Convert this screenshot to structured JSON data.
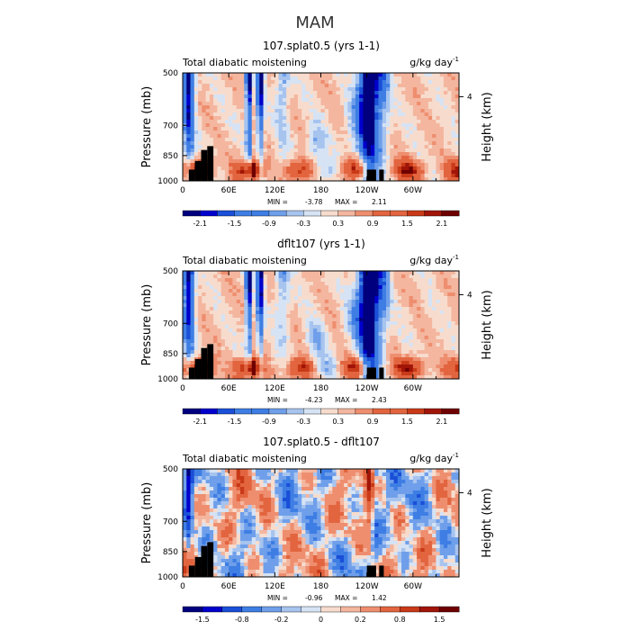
{
  "figure_title": "MAM",
  "colors": [
    "#00007f",
    "#0000cc",
    "#1a4fd8",
    "#3e7ee4",
    "#6f9fea",
    "#a7c4ef",
    "#d6e3f4",
    "#f7dccd",
    "#f4b69f",
    "#ee8e6f",
    "#e2653f",
    "#c93a18",
    "#a11508",
    "#6e0000"
  ],
  "land_color": "#000000",
  "chart_data": [
    {
      "type": "heatmap",
      "title": "107.splat0.5 (yrs 1-1)",
      "subtitle_left": "Total diabatic moistening",
      "units": "g/kg day",
      "units_exponent": "-1",
      "ylabel": "Pressure (mb)",
      "ylabel_right": "Height (km)",
      "y_ticks": [
        "500",
        "700",
        "850",
        "1000"
      ],
      "y_right_ticks": [
        "4"
      ],
      "x_ticks": [
        "0",
        "60E",
        "120E",
        "180",
        "120W",
        "60W"
      ],
      "x_range": [
        0,
        360
      ],
      "y_range": [
        1000,
        500
      ],
      "min_label": "MIN =",
      "min_value": "-3.78",
      "max_label": "MAX =",
      "max_value": "2.11",
      "min": -3.78,
      "max": 2.11,
      "colorbar_ticks": [
        "-2.1",
        "-1.5",
        "-0.9",
        "-0.3",
        "0.3",
        "0.9",
        "1.5",
        "2.1"
      ],
      "colorbar_levels": [
        -2.4,
        -2.1,
        -1.8,
        -1.5,
        -1.2,
        -0.9,
        -0.6,
        -0.3,
        0,
        0.3,
        0.6,
        0.9,
        1.2,
        1.5,
        1.8,
        2.1,
        2.4
      ],
      "pattern": "mean"
    },
    {
      "type": "heatmap",
      "title": "dflt107 (yrs 1-1)",
      "subtitle_left": "Total diabatic moistening",
      "units": "g/kg day",
      "units_exponent": "-1",
      "ylabel": "Pressure (mb)",
      "ylabel_right": "Height (km)",
      "y_ticks": [
        "500",
        "700",
        "850",
        "1000"
      ],
      "y_right_ticks": [
        "4"
      ],
      "x_ticks": [
        "0",
        "60E",
        "120E",
        "180",
        "120W",
        "60W"
      ],
      "x_range": [
        0,
        360
      ],
      "y_range": [
        1000,
        500
      ],
      "min_label": "MIN =",
      "min_value": "-4.23",
      "max_label": "MAX =",
      "max_value": "2.43",
      "min": -4.23,
      "max": 2.43,
      "colorbar_ticks": [
        "-2.1",
        "-1.5",
        "-0.9",
        "-0.3",
        "0.3",
        "0.9",
        "1.5",
        "2.1"
      ],
      "colorbar_levels": [
        -2.4,
        -2.1,
        -1.8,
        -1.5,
        -1.2,
        -0.9,
        -0.6,
        -0.3,
        0,
        0.3,
        0.6,
        0.9,
        1.2,
        1.5,
        1.8,
        2.1,
        2.4
      ],
      "pattern": "mean"
    },
    {
      "type": "heatmap",
      "title": "107.splat0.5 - dflt107",
      "subtitle_left": "Total diabatic moistening",
      "units": "g/kg day",
      "units_exponent": "-1",
      "ylabel": "Pressure (mb)",
      "ylabel_right": "Height (km)",
      "y_ticks": [
        "500",
        "700",
        "850",
        "1000"
      ],
      "y_right_ticks": [
        "4"
      ],
      "x_ticks": [
        "0",
        "60E",
        "120E",
        "180",
        "120W",
        "60W"
      ],
      "x_range": [
        0,
        360
      ],
      "y_range": [
        1000,
        500
      ],
      "min_label": "MIN =",
      "min_value": "-0.96",
      "max_label": "MAX =",
      "max_value": "1.42",
      "min": -0.96,
      "max": 1.42,
      "colorbar_ticks": [
        "-1.5",
        "-0.8",
        "-0.2",
        "0",
        "0.2",
        "0.8",
        "1.5"
      ],
      "colorbar_levels": [
        -1.8,
        -1.5,
        -1.1,
        -0.8,
        -0.5,
        -0.2,
        -0.1,
        0,
        0.1,
        0.2,
        0.5,
        0.8,
        1.1,
        1.5,
        1.8
      ],
      "pattern": "diff"
    }
  ]
}
